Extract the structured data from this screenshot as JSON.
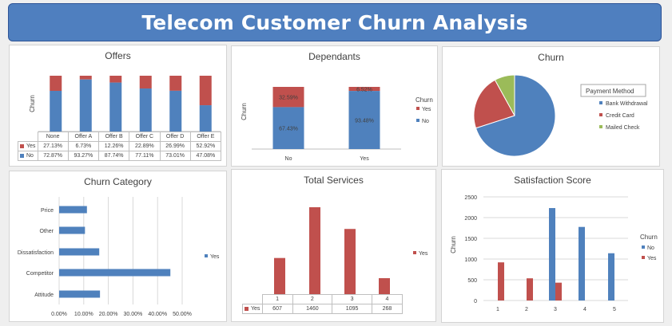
{
  "dashboard": {
    "title": "Telecom Customer Churn  Analysis"
  },
  "colors": {
    "yes": "#c0504d",
    "no": "#4f81bd",
    "mailed": "#9bbb59",
    "banner": "#4f7fbf"
  },
  "chart_data": [
    {
      "id": "offers",
      "type": "bar",
      "stacked": true,
      "title": "Offers",
      "ylabel": "Churn",
      "categories": [
        "None",
        "Offer A",
        "Offer B",
        "Offer C",
        "Offer D",
        "Offer E"
      ],
      "series": [
        {
          "name": "Yes",
          "values": [
            27.13,
            6.73,
            12.26,
            22.89,
            26.99,
            52.92
          ],
          "labels": [
            "27.13%",
            "6.73%",
            "12.26%",
            "22.89%",
            "26.99%",
            "52.92%"
          ]
        },
        {
          "name": "No",
          "values": [
            72.87,
            93.27,
            87.74,
            77.11,
            73.01,
            47.08
          ],
          "labels": [
            "72.87%",
            "93.27%",
            "87.74%",
            "77.11%",
            "73.01%",
            "47.08%"
          ]
        }
      ]
    },
    {
      "id": "dependants",
      "type": "bar",
      "stacked": true,
      "title": "Dependants",
      "ylabel": "Churn",
      "categories": [
        "No",
        "Yes"
      ],
      "legend_title": "Churn",
      "legend_position": "right",
      "series": [
        {
          "name": "Yes",
          "values": [
            32.59,
            6.52
          ],
          "labels": [
            "32.59%",
            "6.52%"
          ]
        },
        {
          "name": "No",
          "values": [
            67.43,
            93.48
          ],
          "labels": [
            "67.43%",
            "93.48%"
          ]
        }
      ]
    },
    {
      "id": "churn",
      "type": "pie",
      "title": "Churn",
      "legend_title": "Payment Method",
      "legend_position": "right",
      "labels": [
        "Bank Withdrawal",
        "Credit Card",
        "Mailed Check"
      ],
      "values": [
        70,
        22,
        8
      ]
    },
    {
      "id": "category",
      "type": "bar",
      "orientation": "horizontal",
      "title": "Churn Category",
      "categories": [
        "Price",
        "Other",
        "Dissatisfaction",
        "Competitor",
        "Attitude"
      ],
      "series": [
        {
          "name": "Yes",
          "values": [
            11.3,
            10.5,
            16.3,
            45.2,
            16.6
          ]
        }
      ],
      "xlim": [
        0,
        50
      ],
      "xticks": [
        "0.00%",
        "10.00%",
        "20.00%",
        "30.00%",
        "40.00%",
        "50.00%"
      ],
      "grid": true,
      "legend_position": "right"
    },
    {
      "id": "services",
      "type": "bar",
      "title": "Total Services",
      "categories": [
        "1",
        "2",
        "3",
        "4"
      ],
      "series": [
        {
          "name": "Yes",
          "values": [
            607,
            1460,
            1095,
            268
          ]
        }
      ],
      "ylim": [
        0,
        1500
      ],
      "legend_position": "right"
    },
    {
      "id": "satisfaction",
      "type": "bar",
      "title": "Satisfaction Score",
      "ylabel": "Churn",
      "categories": [
        "1",
        "2",
        "3",
        "4",
        "5"
      ],
      "legend_title": "Churn",
      "legend_position": "right",
      "ylim": [
        0,
        2500
      ],
      "yticks": [
        "0",
        "500",
        "1000",
        "1500",
        "2000",
        "2500"
      ],
      "grid": true,
      "series": [
        {
          "name": "No",
          "values": [
            0,
            0,
            2230,
            1775,
            1140
          ]
        },
        {
          "name": "Yes",
          "values": [
            920,
            535,
            430,
            0,
            0
          ]
        }
      ]
    }
  ]
}
